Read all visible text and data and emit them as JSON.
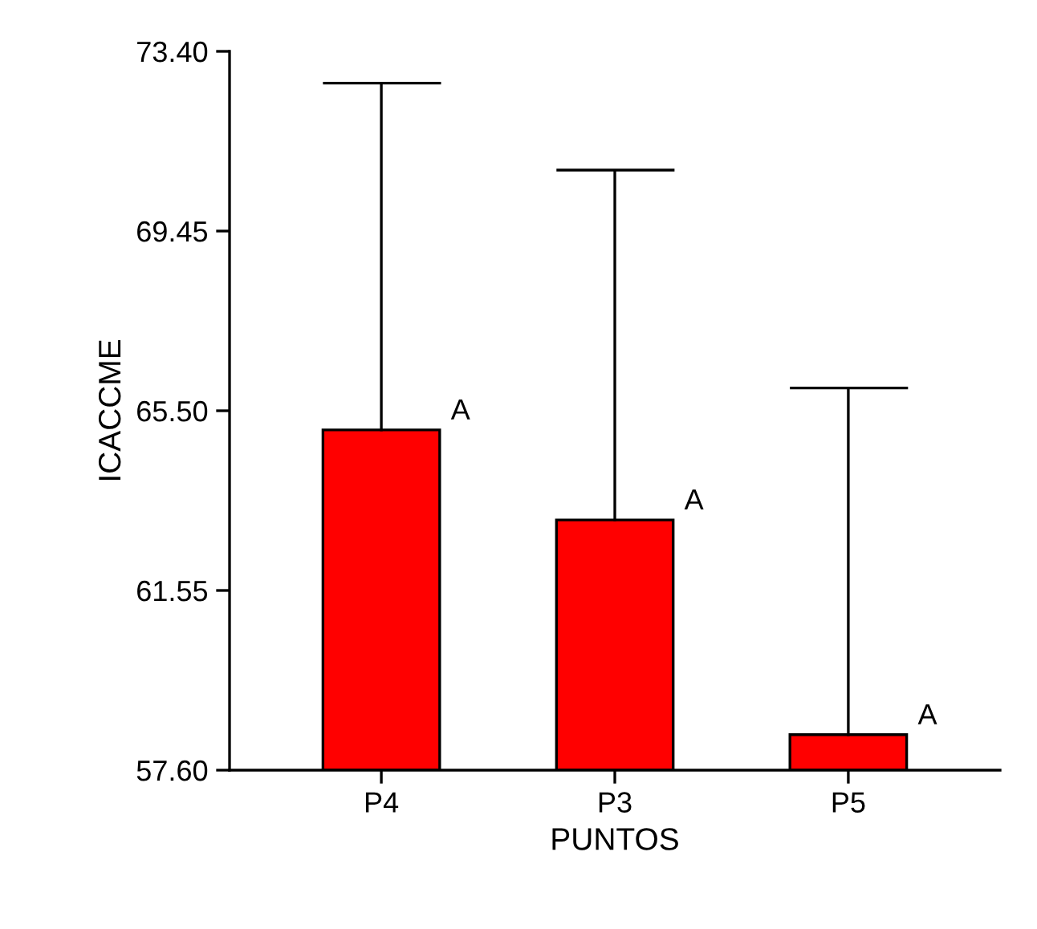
{
  "chart_data": {
    "type": "bar",
    "xlabel": "PUNTOS",
    "ylabel": "ICACCME",
    "categories": [
      "P4",
      "P3",
      "P5"
    ],
    "values": [
      65.08,
      63.1,
      58.38
    ],
    "errors": [
      [
        65.08,
        72.7
      ],
      [
        63.1,
        70.79
      ],
      [
        58.38,
        66.0
      ]
    ],
    "color": "#ff0000",
    "ylim": [
      57.6,
      73.4
    ],
    "yticks": [
      {
        "value": 57.6,
        "label": "57.60"
      },
      {
        "value": 61.55,
        "label": "61.55"
      },
      {
        "value": 65.5,
        "label": "65.50"
      },
      {
        "value": 69.45,
        "label": "69.45"
      },
      {
        "value": 73.4,
        "label": "73.40"
      }
    ],
    "annotations": [
      {
        "text": "A",
        "x": "P4",
        "y": 65.08
      },
      {
        "text": "A",
        "x": "P3",
        "y": 63.1
      },
      {
        "text": "A",
        "x": "P5",
        "y": 58.38
      }
    ],
    "grid": false
  }
}
